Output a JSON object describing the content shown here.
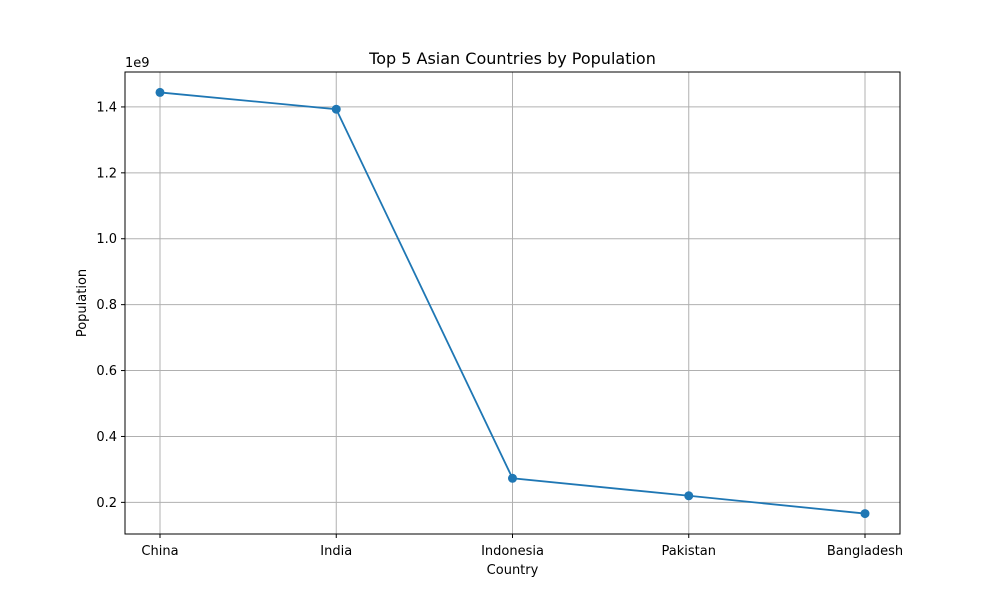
{
  "chart_data": {
    "type": "line",
    "title": "Top 5 Asian Countries by Population",
    "xlabel": "Country",
    "ylabel": "Population",
    "categories": [
      "China",
      "India",
      "Indonesia",
      "Pakistan",
      "Bangladesh"
    ],
    "series": [
      {
        "values": [
          1444000000,
          1393000000,
          273000000,
          220000000,
          166000000
        ],
        "color": "#1f77b4",
        "marker": "circle"
      }
    ],
    "y_offset_label": "1e9",
    "y_ticks": [
      0.2,
      0.4,
      0.6,
      0.8,
      1.0,
      1.2,
      1.4
    ],
    "y_tick_labels": [
      "0.2",
      "0.4",
      "0.6",
      "0.8",
      "1.0",
      "1.2",
      "1.4"
    ],
    "ylim": [
      104000000,
      1506000000
    ],
    "grid": true
  }
}
